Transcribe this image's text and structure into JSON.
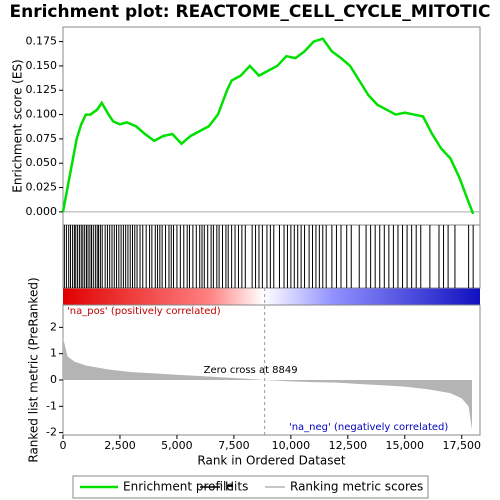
{
  "chart_data": [
    {
      "type": "line",
      "title": "Enrichment plot: REACTOME_CELL_CYCLE_MITOTIC",
      "ylabel": "Enrichment score (ES)",
      "x": [
        0,
        200,
        400,
        600,
        800,
        1000,
        1200,
        1500,
        1700,
        2000,
        2200,
        2500,
        2800,
        3200,
        3600,
        4000,
        4400,
        4800,
        5200,
        5600,
        6000,
        6400,
        6800,
        7200,
        7400,
        7800,
        8200,
        8600,
        9000,
        9400,
        9800,
        10200,
        10600,
        11000,
        11400,
        11800,
        12200,
        12600,
        13000,
        13400,
        13800,
        14200,
        14600,
        15000,
        15400,
        15800,
        16200,
        16600,
        17000,
        17400,
        17800,
        18000
      ],
      "series": [
        {
          "name": "Enrichment profile",
          "color": "#00e000",
          "values": [
            0,
            0.025,
            0.05,
            0.075,
            0.09,
            0.1,
            0.1,
            0.105,
            0.112,
            0.1,
            0.093,
            0.09,
            0.092,
            0.088,
            0.08,
            0.073,
            0.078,
            0.08,
            0.07,
            0.078,
            0.083,
            0.088,
            0.1,
            0.125,
            0.135,
            0.14,
            0.15,
            0.14,
            0.145,
            0.15,
            0.16,
            0.158,
            0.165,
            0.175,
            0.178,
            0.165,
            0.158,
            0.15,
            0.135,
            0.12,
            0.11,
            0.105,
            0.1,
            0.102,
            0.1,
            0.098,
            0.08,
            0.065,
            0.055,
            0.035,
            0.01,
            -0.002
          ]
        }
      ],
      "xlim": [
        0,
        18300
      ],
      "ylim": [
        -0.0135,
        0.19
      ],
      "yticks": [
        {
          "value": 0,
          "label": "0.000"
        },
        {
          "value": 0.025,
          "label": "0.025"
        },
        {
          "value": 0.05,
          "label": "0.050"
        },
        {
          "value": 0.075,
          "label": "0.075"
        },
        {
          "value": 0.1,
          "label": "0.100"
        },
        {
          "value": 0.125,
          "label": "0.125"
        },
        {
          "value": 0.15,
          "label": "0.150"
        },
        {
          "value": 0.175,
          "label": "0.175"
        }
      ]
    },
    {
      "type": "rug",
      "xlim": [
        0,
        18300
      ],
      "series": [
        {
          "name": "Hits",
          "color": "#000000",
          "x": [
            60,
            150,
            250,
            330,
            420,
            500,
            560,
            640,
            720,
            800,
            870,
            950,
            1030,
            1100,
            1180,
            1250,
            1330,
            1420,
            1500,
            1560,
            1640,
            1720,
            1850,
            1950,
            2050,
            2150,
            2250,
            2350,
            2450,
            2550,
            2650,
            2750,
            2850,
            2950,
            3050,
            3150,
            3250,
            3380,
            3500,
            3650,
            3800,
            3900,
            4050,
            4150,
            4250,
            4350,
            4500,
            4650,
            4750,
            4850,
            5000,
            5150,
            5300,
            5450,
            5550,
            5700,
            5850,
            6000,
            6100,
            6200,
            6350,
            6500,
            6600,
            6750,
            6850,
            7000,
            7150,
            7250,
            7400,
            7550,
            7700,
            7850,
            8000,
            8300,
            8450,
            8600,
            8750,
            8950,
            9100,
            9250,
            9500,
            9700,
            9850,
            10000,
            10150,
            10300,
            10450,
            10600,
            10800,
            10950,
            11100,
            11250,
            11400,
            11550,
            11800,
            12000,
            12200,
            12450,
            12650,
            13000,
            13300,
            13500,
            13700,
            13900,
            14100,
            14300,
            14500,
            14700,
            14900,
            15100,
            15300,
            15500,
            15700,
            16100,
            16500,
            16700,
            16900,
            17200,
            17800,
            18000
          ]
        }
      ]
    },
    {
      "type": "area",
      "ylabel": "Ranked list metric (PreRanked)",
      "xlabel": "Rank in Ordered Dataset",
      "x": [
        0,
        200,
        500,
        1000,
        2000,
        3000,
        4000,
        5000,
        6000,
        7000,
        8000,
        8849,
        10000,
        11000,
        12000,
        13000,
        14000,
        15000,
        16000,
        17000,
        17500,
        17800,
        17950
      ],
      "series": [
        {
          "name": "Ranking metric scores",
          "color": "#b4b4b4",
          "values": [
            1.6,
            0.9,
            0.7,
            0.55,
            0.4,
            0.3,
            0.25,
            0.2,
            0.15,
            0.1,
            0.05,
            0,
            -0.05,
            -0.08,
            -0.1,
            -0.15,
            -0.2,
            -0.25,
            -0.35,
            -0.5,
            -0.7,
            -1,
            -1.9
          ]
        }
      ],
      "xlim": [
        0,
        18300
      ],
      "ylim": [
        -2.09,
        2.85
      ],
      "yticks": [
        2,
        1,
        0,
        -1,
        -2
      ],
      "xticks": [
        0,
        {
          "value": 2500,
          "label": "2,500"
        },
        {
          "value": 5000,
          "label": "5,000"
        },
        {
          "value": 7500,
          "label": "7,500"
        },
        {
          "value": 10000,
          "label": "10,000"
        },
        {
          "value": 12500,
          "label": "12,500"
        },
        {
          "value": 15000,
          "label": "15,000"
        },
        {
          "value": 17500,
          "label": "17,500"
        }
      ],
      "zero_cross": 8849,
      "zero_cross_label": "Zero cross at 8849",
      "pos_label": "'na_pos' (positively correlated)",
      "neg_label": "'na_neg' (negatively correlated)"
    }
  ]
}
